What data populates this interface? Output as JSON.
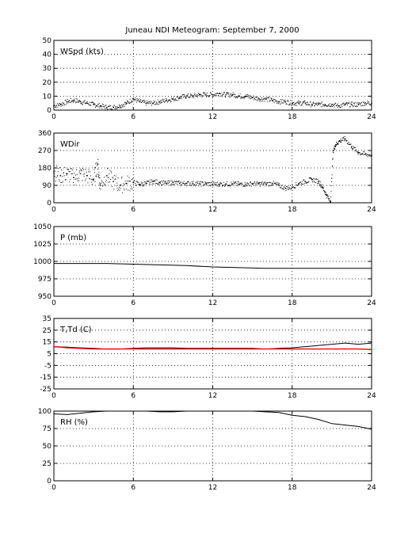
{
  "title": "Juneau NDI Meteogram: September  7, 2000",
  "chart_data": [
    {
      "type": "scatter",
      "label": "WSpd (kts)",
      "xlim": [
        0,
        24
      ],
      "ylim": [
        0,
        50
      ],
      "xticks": [
        0,
        6,
        12,
        18,
        24
      ],
      "yticks": [
        0,
        10,
        20,
        30,
        40,
        50
      ],
      "grid": true,
      "series": [
        {
          "color": "#000000",
          "style": "dots",
          "x": [
            0,
            0.5,
            1,
            1.5,
            2,
            2.5,
            3,
            3.5,
            4,
            4.5,
            5,
            5.5,
            6,
            6.5,
            7,
            7.5,
            8,
            8.5,
            9,
            9.5,
            10,
            10.5,
            11,
            11.5,
            12,
            12.5,
            13,
            13.5,
            14,
            14.5,
            15,
            15.5,
            16,
            16.5,
            17,
            17.5,
            18,
            18.5,
            19,
            19.5,
            20,
            20.5,
            21,
            21.5,
            22,
            22.5,
            23,
            23.5,
            24
          ],
          "y": [
            3,
            4,
            6,
            7,
            6,
            5,
            4,
            3,
            2,
            2,
            3,
            5,
            8,
            6,
            5,
            5,
            6,
            7,
            8,
            9,
            10,
            10,
            11,
            11,
            11,
            12,
            11,
            11,
            10,
            10,
            9,
            8,
            8,
            7,
            6,
            6,
            5,
            5,
            5,
            4,
            4,
            4,
            4,
            3,
            4,
            4,
            4,
            5,
            5
          ]
        }
      ]
    },
    {
      "type": "scatter",
      "label": "WDir",
      "xlim": [
        0,
        24
      ],
      "ylim": [
        0,
        360
      ],
      "xticks": [
        0,
        6,
        12,
        18,
        24
      ],
      "yticks": [
        0,
        90,
        180,
        270,
        360
      ],
      "grid": true,
      "series": [
        {
          "color": "#000000",
          "style": "dots",
          "x": [
            0,
            0.5,
            1,
            1.5,
            2,
            2.5,
            3,
            3.3,
            3.5,
            4,
            4.5,
            5,
            5.5,
            6,
            6.5,
            7,
            7.5,
            8,
            8.5,
            9,
            9.5,
            10,
            10.5,
            11,
            11.5,
            12,
            12.5,
            13,
            13.5,
            14,
            14.5,
            15,
            15.5,
            16,
            16.5,
            17,
            17.5,
            18,
            18.5,
            19,
            19.5,
            20,
            20.3,
            20.6,
            20.9,
            21.1,
            21.3,
            21.6,
            22,
            22.5,
            23,
            23.5,
            24
          ],
          "y": [
            160,
            140,
            150,
            130,
            150,
            140,
            120,
            200,
            90,
            140,
            110,
            90,
            100,
            105,
            95,
            100,
            110,
            105,
            100,
            105,
            100,
            100,
            100,
            98,
            98,
            96,
            96,
            97,
            97,
            96,
            96,
            98,
            98,
            97,
            100,
            90,
            75,
            80,
            100,
            110,
            120,
            110,
            80,
            40,
            5,
            270,
            300,
            320,
            330,
            290,
            260,
            250,
            245
          ]
        }
      ]
    },
    {
      "type": "line",
      "label": "P (mb)",
      "xlim": [
        0,
        24
      ],
      "ylim": [
        950,
        1050
      ],
      "xticks": [
        0,
        6,
        12,
        18,
        24
      ],
      "yticks": [
        950,
        975,
        1000,
        1025,
        1050
      ],
      "grid": true,
      "series": [
        {
          "color": "#000000",
          "x": [
            0,
            2,
            4,
            6,
            8,
            10,
            12,
            14,
            16,
            18,
            20,
            22,
            24
          ],
          "y": [
            997,
            997,
            997,
            996,
            995,
            994,
            992,
            991,
            990,
            990,
            990,
            990,
            990
          ]
        }
      ]
    },
    {
      "type": "line",
      "label": "T,Td (C)",
      "xlim": [
        0,
        24
      ],
      "ylim": [
        -25,
        35
      ],
      "xticks": [
        0,
        6,
        12,
        18,
        24
      ],
      "yticks": [
        -25,
        -15,
        -5,
        5,
        15,
        25,
        35
      ],
      "grid": true,
      "series": [
        {
          "color": "#000000",
          "x": [
            0,
            1,
            2,
            3,
            4,
            5,
            6,
            7,
            8,
            9,
            10,
            11,
            12,
            13,
            14,
            15,
            16,
            17,
            18,
            19,
            20,
            21,
            22,
            23,
            24
          ],
          "y": [
            11,
            10.5,
            10,
            9.5,
            9,
            9,
            9.5,
            10,
            10,
            10,
            9.5,
            9.5,
            9.5,
            9.5,
            9.5,
            9.5,
            9,
            9.5,
            10,
            11,
            12,
            13,
            14,
            13,
            14
          ]
        },
        {
          "color": "#ff0000",
          "x": [
            0,
            1,
            2,
            3,
            4,
            5,
            6,
            7,
            8,
            9,
            10,
            11,
            12,
            13,
            14,
            15,
            16,
            17,
            18,
            19,
            20,
            21,
            22,
            23,
            24
          ],
          "y": [
            11,
            10,
            9.5,
            9,
            9,
            9,
            9,
            9,
            9,
            9,
            9,
            9,
            9,
            9,
            9,
            9,
            9,
            9,
            9,
            9,
            9,
            9,
            9,
            9,
            8.5
          ]
        }
      ]
    },
    {
      "type": "line",
      "label": "RH (%)",
      "xlim": [
        0,
        24
      ],
      "ylim": [
        0,
        100
      ],
      "xticks": [
        0,
        6,
        12,
        18,
        24
      ],
      "yticks": [
        0,
        25,
        50,
        75,
        100
      ],
      "grid": true,
      "series": [
        {
          "color": "#000000",
          "x": [
            0,
            1,
            2,
            3,
            4,
            5,
            6,
            7,
            8,
            9,
            10,
            11,
            12,
            13,
            14,
            15,
            16,
            17,
            18,
            19,
            20,
            21,
            22,
            23,
            24
          ],
          "y": [
            96,
            95,
            97,
            99,
            100,
            100,
            100,
            100,
            99,
            99,
            100,
            100,
            100,
            100,
            100,
            100,
            99,
            98,
            94,
            92,
            88,
            82,
            80,
            78,
            74
          ]
        }
      ]
    }
  ]
}
